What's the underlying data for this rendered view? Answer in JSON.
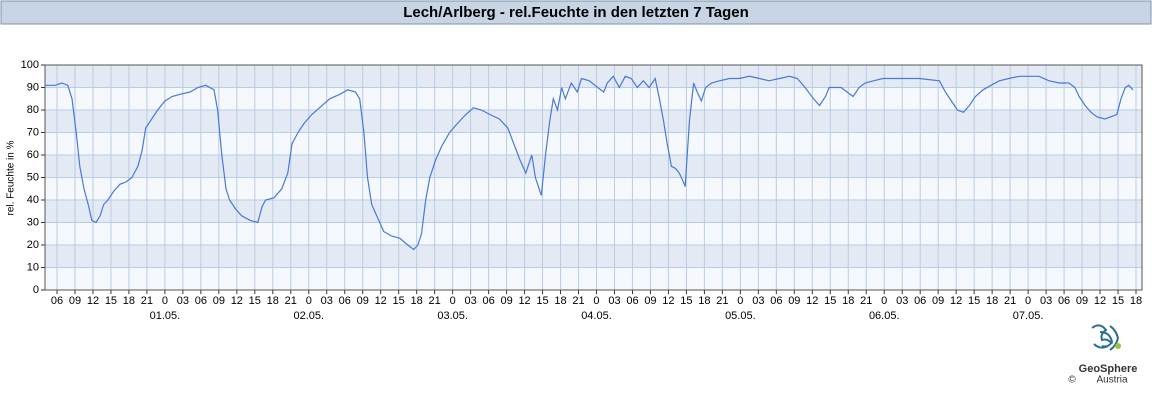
{
  "chart_data": {
    "type": "line",
    "title": "Lech/Arlberg - rel.Feuchte in den letzten 7 Tagen",
    "ylabel": "rel. Feuchte in %",
    "xlim": [
      4,
      187
    ],
    "ylim": [
      0,
      100
    ],
    "yticks": [
      0,
      10,
      20,
      30,
      40,
      50,
      60,
      70,
      80,
      90,
      100
    ],
    "xticks": [
      {
        "value": 6,
        "label": "06"
      },
      {
        "value": 9,
        "label": "09"
      },
      {
        "value": 12,
        "label": "12"
      },
      {
        "value": 15,
        "label": "15"
      },
      {
        "value": 18,
        "label": "18"
      },
      {
        "value": 21,
        "label": "21"
      },
      {
        "value": 24,
        "label": "0"
      },
      {
        "value": 27,
        "label": "03"
      },
      {
        "value": 30,
        "label": "06"
      },
      {
        "value": 33,
        "label": "09"
      },
      {
        "value": 36,
        "label": "12"
      },
      {
        "value": 39,
        "label": "15"
      },
      {
        "value": 42,
        "label": "18"
      },
      {
        "value": 45,
        "label": "21"
      },
      {
        "value": 48,
        "label": "0"
      },
      {
        "value": 51,
        "label": "03"
      },
      {
        "value": 54,
        "label": "06"
      },
      {
        "value": 57,
        "label": "09"
      },
      {
        "value": 60,
        "label": "12"
      },
      {
        "value": 63,
        "label": "15"
      },
      {
        "value": 66,
        "label": "18"
      },
      {
        "value": 69,
        "label": "21"
      },
      {
        "value": 72,
        "label": "0"
      },
      {
        "value": 75,
        "label": "03"
      },
      {
        "value": 78,
        "label": "06"
      },
      {
        "value": 81,
        "label": "09"
      },
      {
        "value": 84,
        "label": "12"
      },
      {
        "value": 87,
        "label": "15"
      },
      {
        "value": 90,
        "label": "18"
      },
      {
        "value": 93,
        "label": "21"
      },
      {
        "value": 96,
        "label": "0"
      },
      {
        "value": 99,
        "label": "03"
      },
      {
        "value": 102,
        "label": "06"
      },
      {
        "value": 105,
        "label": "09"
      },
      {
        "value": 108,
        "label": "12"
      },
      {
        "value": 111,
        "label": "15"
      },
      {
        "value": 114,
        "label": "18"
      },
      {
        "value": 117,
        "label": "21"
      },
      {
        "value": 120,
        "label": "0"
      },
      {
        "value": 123,
        "label": "03"
      },
      {
        "value": 126,
        "label": "06"
      },
      {
        "value": 129,
        "label": "09"
      },
      {
        "value": 132,
        "label": "12"
      },
      {
        "value": 135,
        "label": "15"
      },
      {
        "value": 138,
        "label": "18"
      },
      {
        "value": 141,
        "label": "21"
      },
      {
        "value": 144,
        "label": "0"
      },
      {
        "value": 147,
        "label": "03"
      },
      {
        "value": 150,
        "label": "06"
      },
      {
        "value": 153,
        "label": "09"
      },
      {
        "value": 156,
        "label": "12"
      },
      {
        "value": 159,
        "label": "15"
      },
      {
        "value": 162,
        "label": "18"
      },
      {
        "value": 165,
        "label": "21"
      },
      {
        "value": 168,
        "label": "0"
      },
      {
        "value": 171,
        "label": "03"
      },
      {
        "value": 174,
        "label": "06"
      },
      {
        "value": 177,
        "label": "09"
      },
      {
        "value": 180,
        "label": "12"
      },
      {
        "value": 183,
        "label": "15"
      },
      {
        "value": 186,
        "label": "18"
      }
    ],
    "date_labels": [
      {
        "value": 24,
        "label": "01.05."
      },
      {
        "value": 48,
        "label": "02.05."
      },
      {
        "value": 72,
        "label": "03.05."
      },
      {
        "value": 96,
        "label": "04.05."
      },
      {
        "value": 120,
        "label": "05.05."
      },
      {
        "value": 144,
        "label": "06.05."
      },
      {
        "value": 168,
        "label": "07.05."
      }
    ],
    "grid": true,
    "color": "#4a78d8",
    "x": [
      4.0,
      5.7,
      6.8,
      7.8,
      8.5,
      9.2,
      9.8,
      10.5,
      11.2,
      11.8,
      12.5,
      13.2,
      13.8,
      14.5,
      15.5,
      16.5,
      17.5,
      18.5,
      19.5,
      20.2,
      20.8,
      21.8,
      22.8,
      24.0,
      25.2,
      26.5,
      28.2,
      29.5,
      30.8,
      32.2,
      32.8,
      33.5,
      34.2,
      34.8,
      35.8,
      36.8,
      38.2,
      39.5,
      40.2,
      40.8,
      42.2,
      43.5,
      44.5,
      45.2,
      46.2,
      47.2,
      48.5,
      49.8,
      51.5,
      53.2,
      54.5,
      55.8,
      56.5,
      57.2,
      57.8,
      58.5,
      59.5,
      60.5,
      61.8,
      63.2,
      64.5,
      65.5,
      66.2,
      66.8,
      67.5,
      68.2,
      69.2,
      70.2,
      71.5,
      72.8,
      74.2,
      75.5,
      76.8,
      78.2,
      79.8,
      81.2,
      82.2,
      83.2,
      84.2,
      85.2,
      85.8,
      86.8,
      87.5,
      88.2,
      88.8,
      89.5,
      90.2,
      90.8,
      91.8,
      92.8,
      93.5,
      94.8,
      96.2,
      97.2,
      97.8,
      98.8,
      99.8,
      100.8,
      101.8,
      102.8,
      103.8,
      104.8,
      105.8,
      106.5,
      107.2,
      107.8,
      108.5,
      109.2,
      109.8,
      110.5,
      110.8,
      111.5,
      112.2,
      112.8,
      113.5,
      114.2,
      115.2,
      116.5,
      118.2,
      119.8,
      121.5,
      123.2,
      124.8,
      126.5,
      128.2,
      129.5,
      130.8,
      132.2,
      133.2,
      134.2,
      134.8,
      135.8,
      136.8,
      137.8,
      138.8,
      139.8,
      140.8,
      142.2,
      143.8,
      146.5,
      149.8,
      153.2,
      154.2,
      155.2,
      156.2,
      157.2,
      158.2,
      159.2,
      160.5,
      161.8,
      163.2,
      164.8,
      166.5,
      169.8,
      171.5,
      173.2,
      174.8,
      175.8,
      176.5,
      177.5,
      178.5,
      179.5,
      180.8,
      181.8,
      182.8,
      183.5,
      184.2,
      184.8,
      185.5
    ],
    "values": [
      91,
      91,
      92,
      91,
      85,
      70,
      55,
      45,
      38,
      31,
      30,
      33,
      38,
      40,
      44,
      47,
      48,
      50,
      55,
      62,
      72,
      76,
      80,
      84,
      86,
      87,
      88,
      90,
      91,
      89,
      80,
      60,
      45,
      40,
      36,
      33,
      31,
      30,
      37,
      40,
      41,
      45,
      52,
      65,
      70,
      74,
      78,
      81,
      85,
      87,
      89,
      88,
      85,
      70,
      50,
      38,
      32,
      26,
      24,
      23,
      20,
      18,
      20,
      25,
      40,
      50,
      58,
      64,
      70,
      74,
      78,
      81,
      80,
      78,
      76,
      72,
      65,
      58,
      52,
      60,
      50,
      42,
      60,
      75,
      85,
      80,
      90,
      85,
      92,
      88,
      94,
      93,
      90,
      88,
      92,
      95,
      90,
      95,
      94,
      90,
      93,
      90,
      94,
      85,
      75,
      65,
      55,
      54,
      52,
      48,
      46,
      75,
      92,
      88,
      84,
      90,
      92,
      93,
      94,
      94,
      95,
      94,
      93,
      94,
      95,
      94,
      90,
      85,
      82,
      86,
      90,
      90,
      90,
      88,
      86,
      90,
      92,
      93,
      94,
      94,
      94,
      93,
      88,
      84,
      80,
      79,
      82,
      86,
      89,
      91,
      93,
      94,
      95,
      95,
      93,
      92,
      92,
      90,
      86,
      82,
      79,
      77,
      76,
      77,
      78,
      85,
      90,
      91,
      89
    ]
  },
  "logo": {
    "name": "GeoSphere",
    "sub": "Austria",
    "copyright": "©"
  }
}
